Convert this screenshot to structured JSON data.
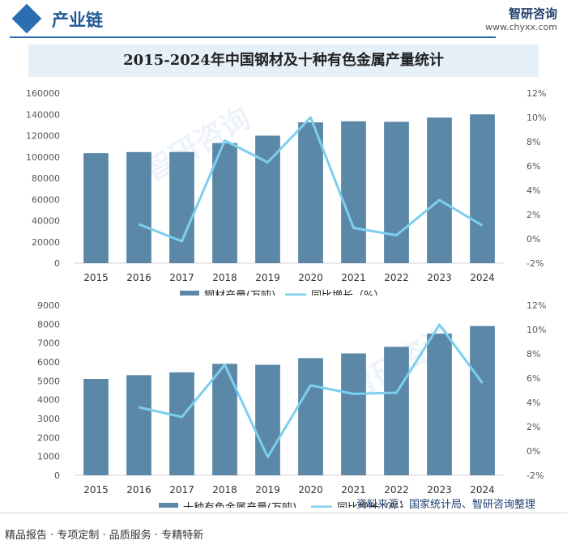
{
  "header": {
    "section_title": "产业链",
    "logo_name": "智研咨询",
    "logo_url": "www.chyxx.com"
  },
  "title": "2015-2024年中国钢材及十种有色金属产量统计",
  "watermark": "智研咨询",
  "colors": {
    "bar": "#5b88a7",
    "line": "#7ccfee",
    "accent": "#2c6fb0"
  },
  "chart_data": [
    {
      "type": "bar",
      "categories": [
        "2015",
        "2016",
        "2017",
        "2018",
        "2019",
        "2020",
        "2021",
        "2022",
        "2023",
        "2024"
      ],
      "series": [
        {
          "name": "钢材产量(万吨)",
          "type": "bar",
          "axis": "left",
          "values": [
            103500,
            104500,
            104600,
            113000,
            120000,
            132500,
            133500,
            133000,
            137000,
            140000
          ]
        },
        {
          "name": "同比增长（%）",
          "type": "line",
          "axis": "right",
          "values": [
            null,
            1.2,
            -0.2,
            8.1,
            6.3,
            10.0,
            0.9,
            0.3,
            3.2,
            1.1
          ]
        }
      ],
      "y_left": {
        "min": 0,
        "max": 160000,
        "ticks": [
          "0",
          "20000",
          "40000",
          "60000",
          "80000",
          "100000",
          "120000",
          "140000",
          "160000"
        ]
      },
      "y_right": {
        "min": -2,
        "max": 12,
        "ticks": [
          "-2%",
          "0%",
          "2%",
          "4%",
          "6%",
          "8%",
          "10%",
          "12%"
        ]
      },
      "legend": [
        "钢材产量(万吨)",
        "同比增长（%）"
      ]
    },
    {
      "type": "bar",
      "categories": [
        "2015",
        "2016",
        "2017",
        "2018",
        "2019",
        "2020",
        "2021",
        "2022",
        "2023",
        "2024"
      ],
      "series": [
        {
          "name": "十种有色金属产量(万吨)",
          "type": "bar",
          "axis": "left",
          "values": [
            5100,
            5300,
            5450,
            5900,
            5850,
            6200,
            6450,
            6800,
            7500,
            7900
          ]
        },
        {
          "name": "同比增长（%）",
          "type": "line",
          "axis": "right",
          "values": [
            null,
            3.6,
            2.8,
            7.1,
            -0.5,
            5.4,
            4.7,
            4.8,
            10.4,
            5.6
          ]
        }
      ],
      "y_left": {
        "min": 0,
        "max": 9000,
        "ticks": [
          "0",
          "1000",
          "2000",
          "3000",
          "4000",
          "5000",
          "6000",
          "7000",
          "8000",
          "9000"
        ]
      },
      "y_right": {
        "min": -2,
        "max": 12,
        "ticks": [
          "-2%",
          "0%",
          "2%",
          "4%",
          "6%",
          "8%",
          "10%",
          "12%"
        ]
      },
      "legend": [
        "十种有色金属产量(万吨)",
        "同比增长（%）"
      ]
    }
  ],
  "footer": {
    "source": "资料来源：国家统计局、智研咨询整理",
    "tagline": "精品报告 · 专项定制 · 品质服务 · 专精特新"
  }
}
